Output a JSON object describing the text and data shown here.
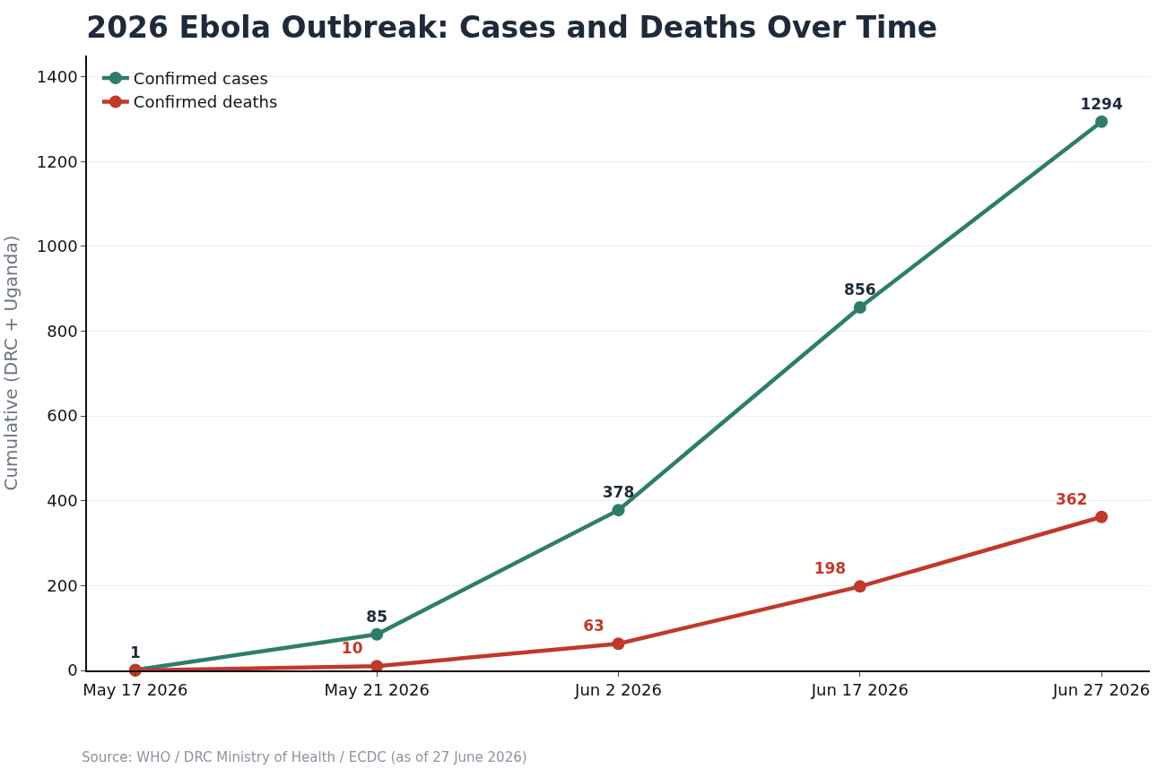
{
  "chart_data": {
    "type": "line",
    "title": "2026 Ebola Outbreak: Cases and Deaths Over Time",
    "ylabel": "Cumulative (DRC + Uganda)",
    "categories": [
      "May 17 2026",
      "May 21 2026",
      "Jun 2 2026",
      "Jun 17 2026",
      "Jun 27 2026"
    ],
    "series": [
      {
        "name": "Confirmed cases",
        "color": "#2e7d6b",
        "values": [
          1,
          85,
          378,
          856,
          1294
        ],
        "value_labels": [
          "1",
          "85",
          "378",
          "856",
          "1294"
        ]
      },
      {
        "name": "Confirmed deaths",
        "color": "#c0392b",
        "values": [
          0,
          10,
          63,
          198,
          362
        ],
        "value_labels": [
          null,
          "10",
          "63",
          "198",
          "362"
        ]
      }
    ],
    "ylim": [
      0,
      1450
    ],
    "yticks": [
      0,
      200,
      400,
      600,
      800,
      1000,
      1200,
      1400
    ],
    "grid": "y",
    "legend": "top left",
    "marker": "circle",
    "line_style": "solid",
    "annotations": [
      "Source: WHO / DRC Ministry of Health / ECDC (as of 27 June 2026)"
    ]
  }
}
